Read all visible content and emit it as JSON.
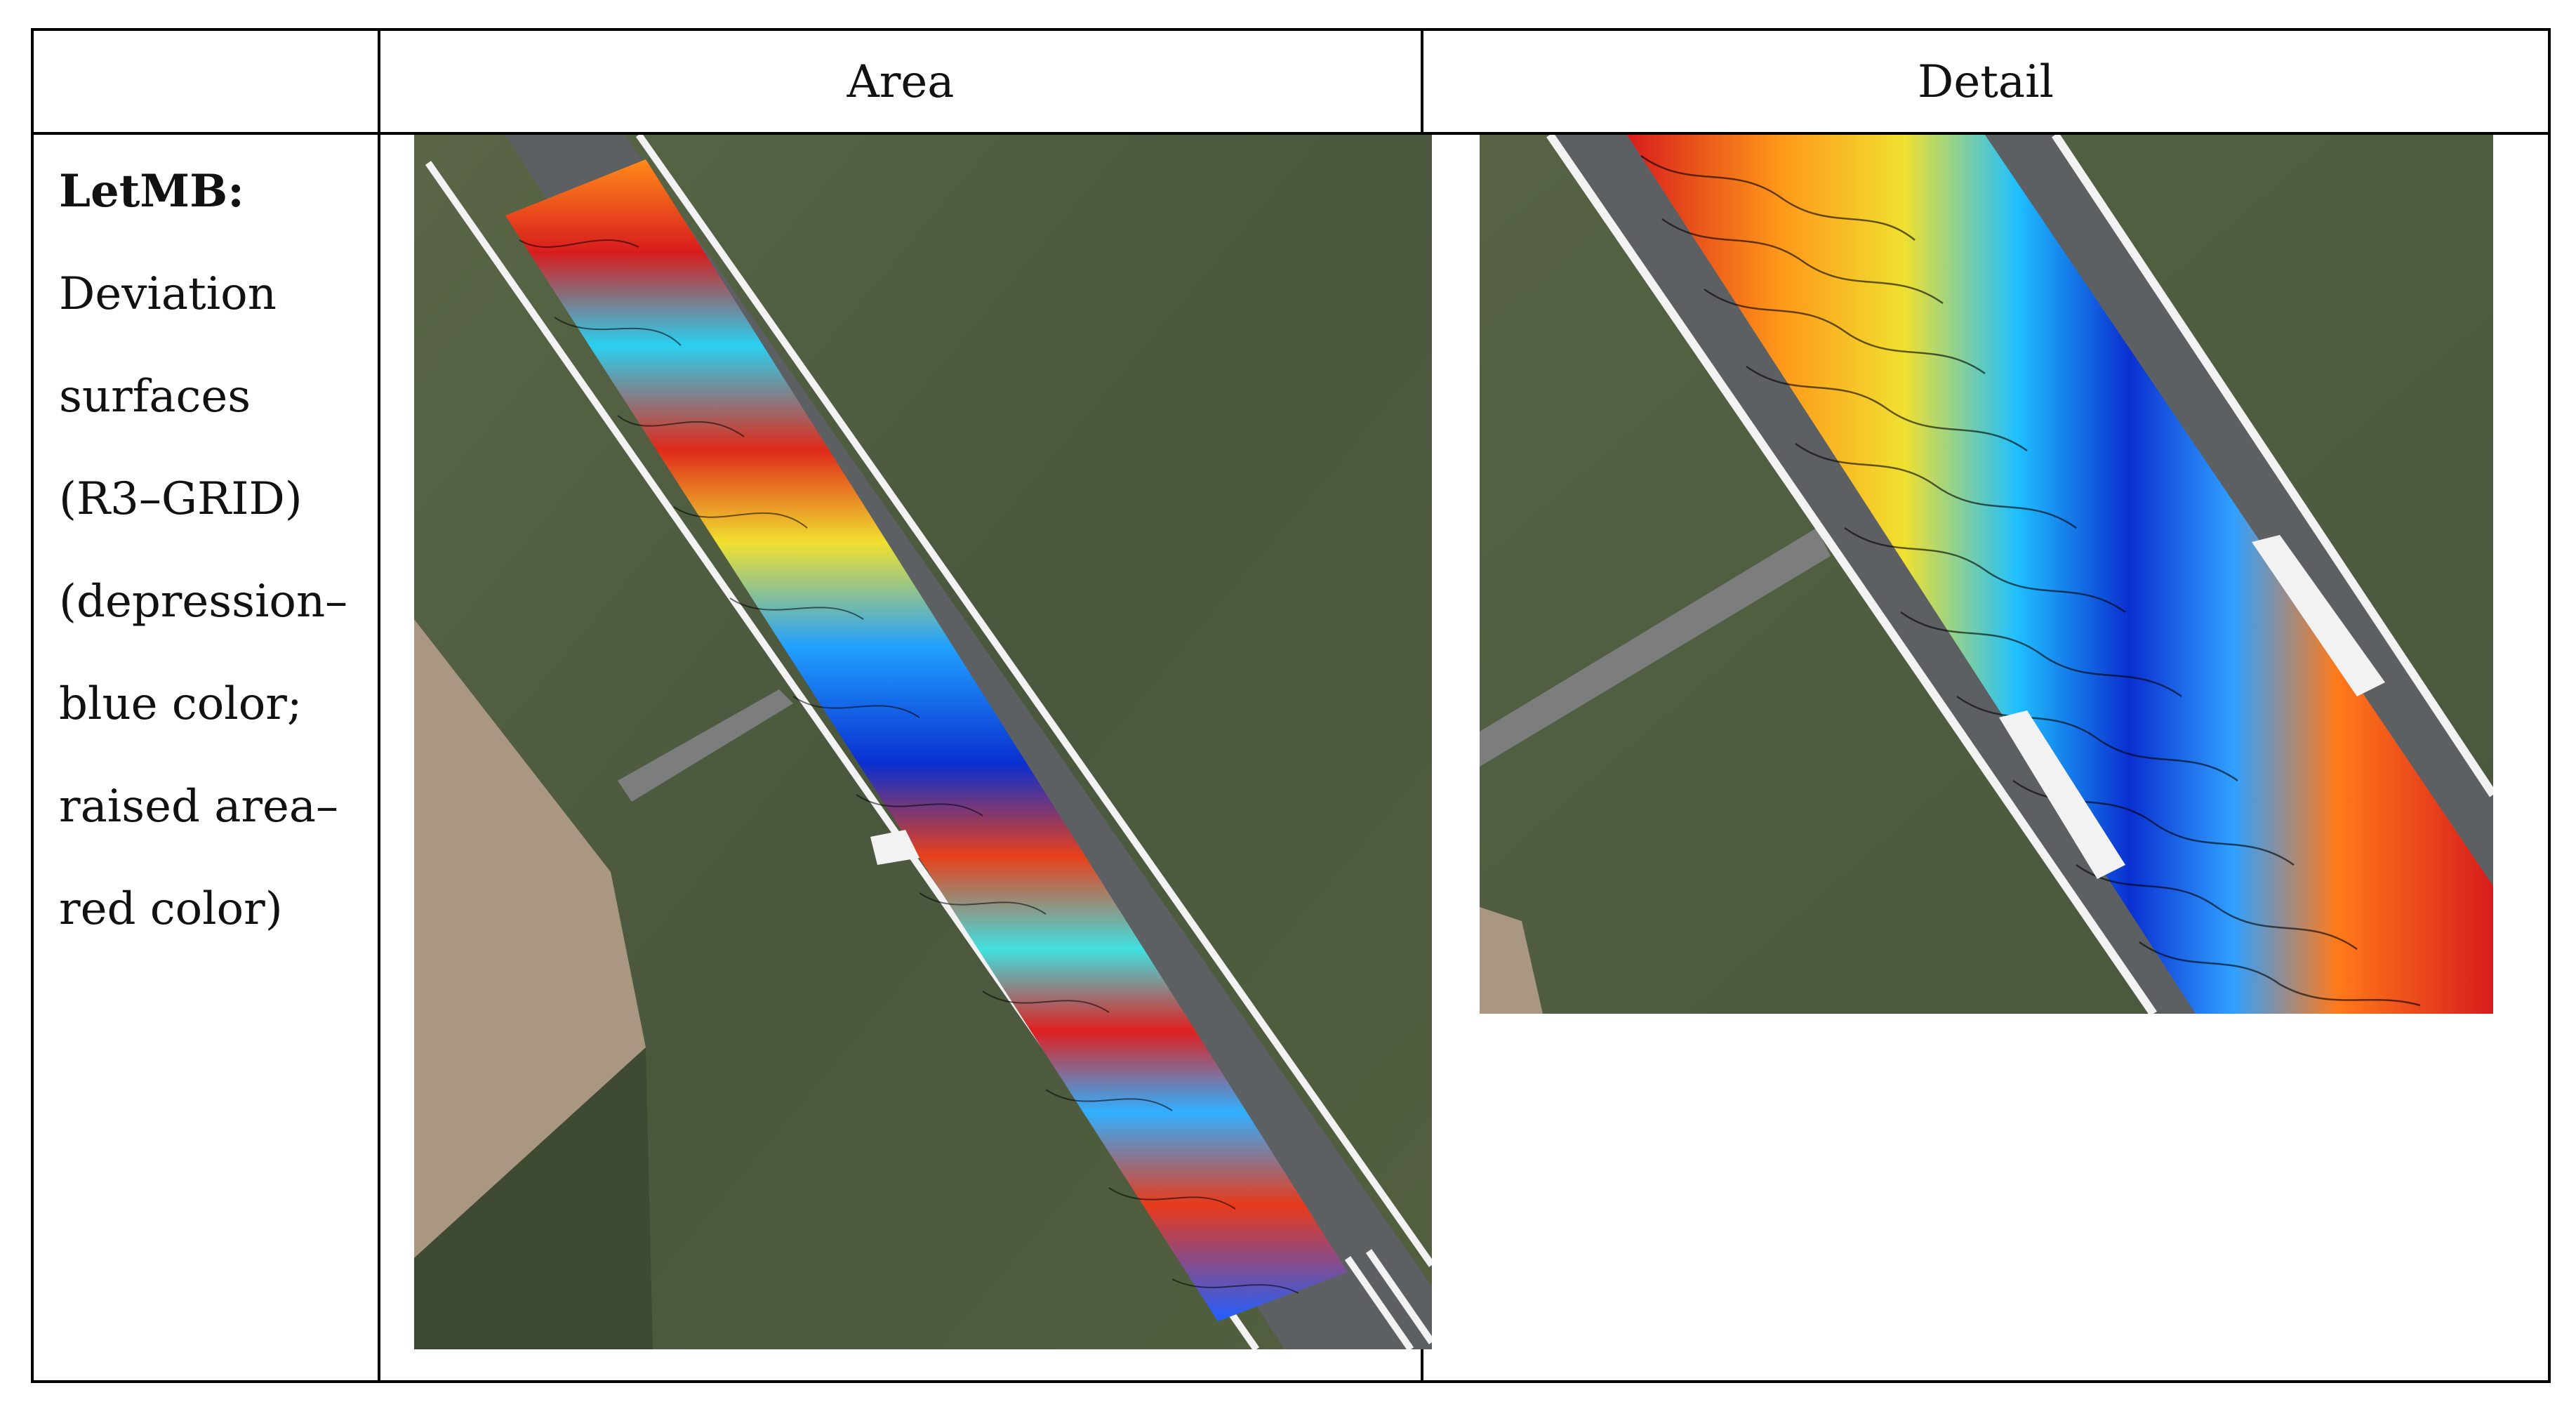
{
  "table": {
    "columns": [
      "",
      "Area",
      "Detail"
    ],
    "row": {
      "title": "LetMB:",
      "lines": [
        "Deviation",
        "surfaces",
        "(R3–GRID)",
        "(depression–",
        "blue color;"
      ],
      "line6_left": "raised",
      "line6_right": "area–",
      "line7": "red color)"
    }
  },
  "images": {
    "area": "area-deviation-map",
    "detail": "detail-deviation-map"
  },
  "colors": {
    "grass": "#4e5a40",
    "runway": "#5d6062",
    "high": "#d91a1a",
    "low": "#0a2fd0"
  }
}
